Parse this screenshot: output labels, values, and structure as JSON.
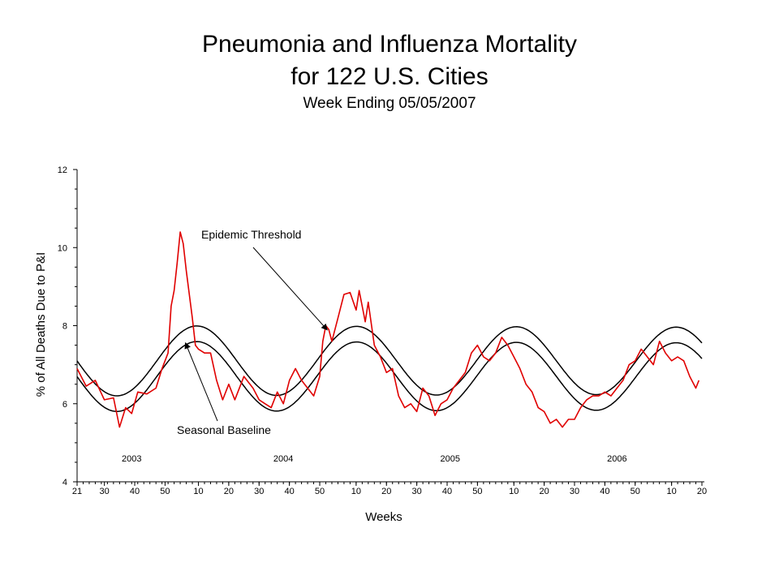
{
  "header": {
    "title_line1": "Pneumonia and Influenza Mortality",
    "title_line2": "for 122 U.S. Cities",
    "subtitle": "Week Ending 05/05/2007"
  },
  "chart_data": {
    "type": "line",
    "title": "Pneumonia and Influenza Mortality for 122 U.S. Cities",
    "subtitle": "Week Ending 05/05/2007",
    "xlabel": "Weeks",
    "ylabel": "% of All Deaths Due to P&I",
    "ylim": [
      4,
      12
    ],
    "y_ticks": [
      4,
      6,
      8,
      10,
      12
    ],
    "x_ticks": [
      "21",
      "30",
      "40",
      "50",
      "10",
      "20",
      "30",
      "40",
      "50",
      "10",
      "20",
      "30",
      "40",
      "50",
      "10",
      "20",
      "30",
      "40",
      "50",
      "10",
      "20"
    ],
    "x_tick_index": [
      0,
      9,
      19,
      29,
      40,
      50,
      60,
      70,
      80,
      92,
      102,
      112,
      122,
      132,
      144,
      154,
      164,
      174,
      184,
      196,
      206
    ],
    "year_labels": [
      {
        "label": "2003",
        "index": 18
      },
      {
        "label": "2004",
        "index": 68
      },
      {
        "label": "2005",
        "index": 123
      },
      {
        "label": "2006",
        "index": 178
      }
    ],
    "annotations": [
      {
        "text": "Epidemic Threshold",
        "target_index": 83,
        "target_value": 7.85
      },
      {
        "text": "Seasonal Baseline",
        "target_index": 36,
        "target_value": 7.6
      }
    ],
    "series": [
      {
        "name": "Epidemic Threshold",
        "color": "#000000",
        "model": {
          "mean": 7.1,
          "amplitude": 0.9,
          "trough_index": 13,
          "trough_shift_per_year": 0.5,
          "amp_growth_per_year": -0.01,
          "period": 52.18
        }
      },
      {
        "name": "Seasonal Baseline",
        "color": "#000000",
        "model": {
          "mean": 6.7,
          "amplitude": 0.9,
          "trough_index": 13,
          "trough_shift_per_year": 0.5,
          "amp_growth_per_year": -0.01,
          "period": 52.18
        }
      },
      {
        "name": "P&I Mortality",
        "color": "#e00000",
        "points": [
          [
            0,
            6.9
          ],
          [
            3,
            6.45
          ],
          [
            6,
            6.6
          ],
          [
            9,
            6.1
          ],
          [
            12,
            6.15
          ],
          [
            14,
            5.4
          ],
          [
            16,
            5.9
          ],
          [
            18,
            5.75
          ],
          [
            20,
            6.3
          ],
          [
            23,
            6.25
          ],
          [
            26,
            6.4
          ],
          [
            28,
            6.9
          ],
          [
            30,
            7.3
          ],
          [
            31,
            8.5
          ],
          [
            32,
            8.9
          ],
          [
            33,
            9.6
          ],
          [
            34,
            10.4
          ],
          [
            35,
            10.1
          ],
          [
            36,
            9.4
          ],
          [
            37,
            8.8
          ],
          [
            38,
            8.2
          ],
          [
            39,
            7.5
          ],
          [
            40,
            7.4
          ],
          [
            42,
            7.3
          ],
          [
            44,
            7.3
          ],
          [
            46,
            6.6
          ],
          [
            48,
            6.1
          ],
          [
            50,
            6.5
          ],
          [
            52,
            6.1
          ],
          [
            55,
            6.7
          ],
          [
            58,
            6.4
          ],
          [
            60,
            6.1
          ],
          [
            62,
            6.0
          ],
          [
            64,
            5.9
          ],
          [
            66,
            6.3
          ],
          [
            68,
            6.0
          ],
          [
            70,
            6.6
          ],
          [
            72,
            6.9
          ],
          [
            74,
            6.6
          ],
          [
            76,
            6.4
          ],
          [
            78,
            6.2
          ],
          [
            80,
            6.7
          ],
          [
            81,
            7.6
          ],
          [
            82,
            8.0
          ],
          [
            83,
            7.9
          ],
          [
            84,
            7.6
          ],
          [
            86,
            8.2
          ],
          [
            88,
            8.8
          ],
          [
            90,
            8.85
          ],
          [
            92,
            8.4
          ],
          [
            93,
            8.9
          ],
          [
            95,
            8.1
          ],
          [
            96,
            8.6
          ],
          [
            98,
            7.5
          ],
          [
            100,
            7.2
          ],
          [
            102,
            6.8
          ],
          [
            104,
            6.9
          ],
          [
            106,
            6.2
          ],
          [
            108,
            5.9
          ],
          [
            110,
            6.0
          ],
          [
            112,
            5.8
          ],
          [
            114,
            6.4
          ],
          [
            116,
            6.2
          ],
          [
            118,
            5.7
          ],
          [
            120,
            6.0
          ],
          [
            122,
            6.1
          ],
          [
            124,
            6.4
          ],
          [
            126,
            6.6
          ],
          [
            128,
            6.8
          ],
          [
            130,
            7.3
          ],
          [
            132,
            7.5
          ],
          [
            134,
            7.2
          ],
          [
            136,
            7.1
          ],
          [
            138,
            7.3
          ],
          [
            140,
            7.7
          ],
          [
            142,
            7.5
          ],
          [
            144,
            7.2
          ],
          [
            146,
            6.9
          ],
          [
            148,
            6.5
          ],
          [
            150,
            6.3
          ],
          [
            152,
            5.9
          ],
          [
            154,
            5.8
          ],
          [
            156,
            5.5
          ],
          [
            158,
            5.6
          ],
          [
            160,
            5.4
          ],
          [
            162,
            5.6
          ],
          [
            164,
            5.6
          ],
          [
            166,
            5.9
          ],
          [
            168,
            6.1
          ],
          [
            170,
            6.2
          ],
          [
            172,
            6.2
          ],
          [
            174,
            6.3
          ],
          [
            176,
            6.2
          ],
          [
            178,
            6.4
          ],
          [
            180,
            6.6
          ],
          [
            182,
            7.0
          ],
          [
            184,
            7.1
          ],
          [
            186,
            7.4
          ],
          [
            188,
            7.2
          ],
          [
            190,
            7.0
          ],
          [
            192,
            7.6
          ],
          [
            194,
            7.3
          ],
          [
            196,
            7.1
          ],
          [
            198,
            7.2
          ],
          [
            200,
            7.1
          ],
          [
            202,
            6.7
          ],
          [
            204,
            6.4
          ],
          [
            205,
            6.6
          ]
        ]
      }
    ],
    "grid": false,
    "legend": "none"
  }
}
